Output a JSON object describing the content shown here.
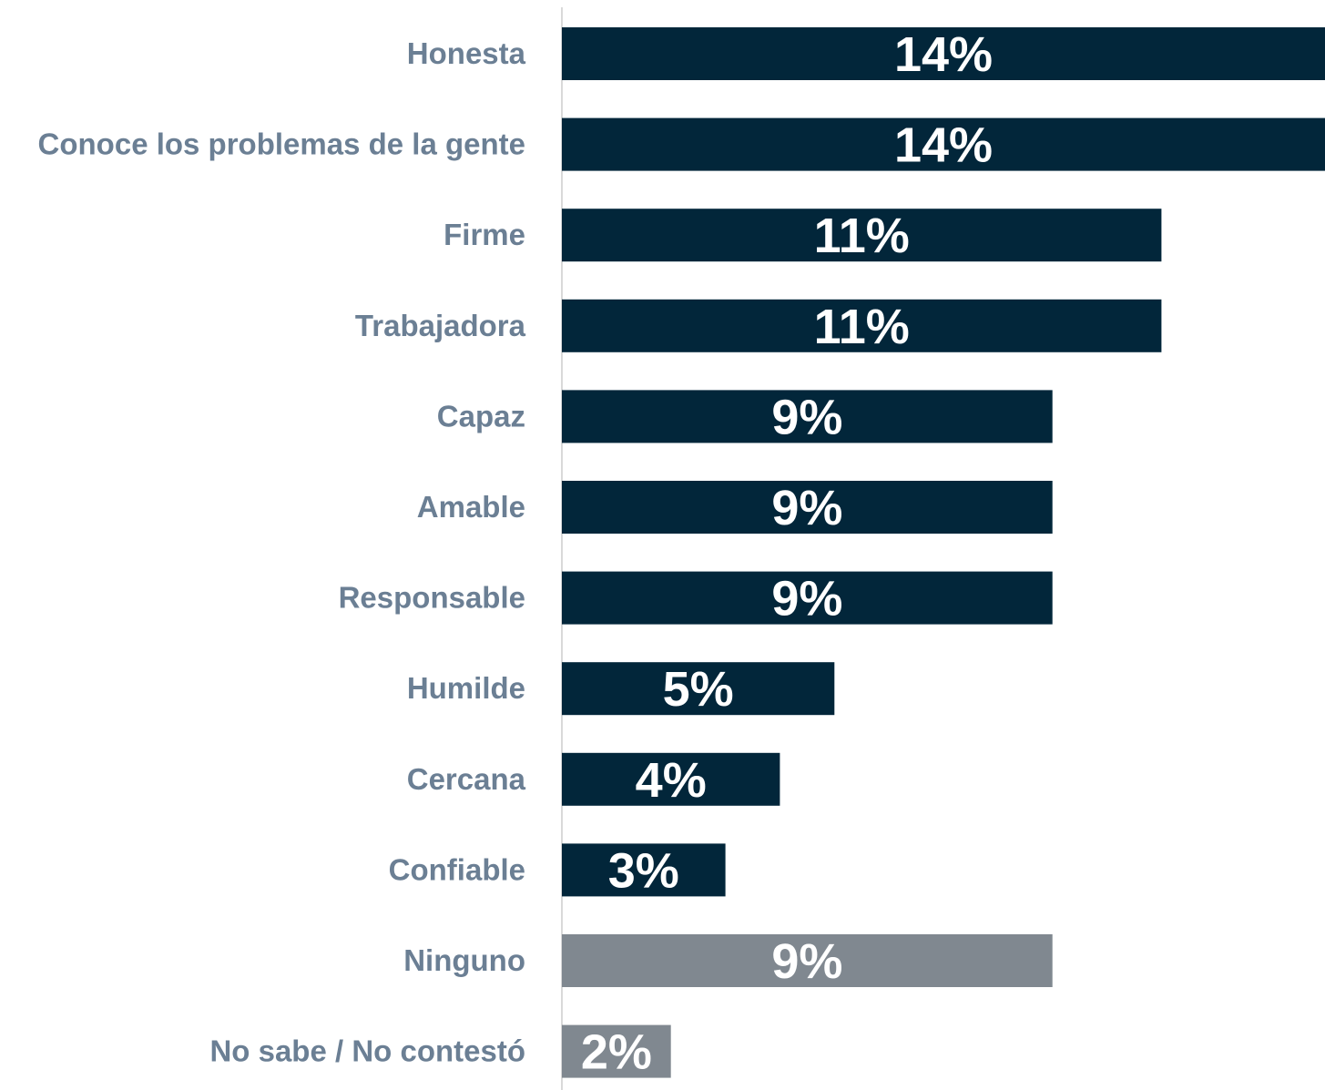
{
  "chart_data": {
    "type": "bar",
    "orientation": "horizontal",
    "categories": [
      "Honesta",
      "Conoce los problemas de la gente",
      "Firme",
      "Trabajadora",
      "Capaz",
      "Amable",
      "Responsable",
      "Humilde",
      "Cercana",
      "Confiable",
      "Ninguno",
      "No sabe / No contestó"
    ],
    "values": [
      14,
      14,
      11,
      11,
      9,
      9,
      9,
      5,
      4,
      3,
      9,
      2
    ],
    "value_labels": [
      "14%",
      "14%",
      "11%",
      "11%",
      "9%",
      "9%",
      "9%",
      "5%",
      "4%",
      "3%",
      "9%",
      "2%"
    ],
    "bar_colors": [
      "#02263a",
      "#02263a",
      "#02263a",
      "#02263a",
      "#02263a",
      "#02263a",
      "#02263a",
      "#02263a",
      "#02263a",
      "#02263a",
      "#808890",
      "#808890"
    ],
    "xlim": [
      0,
      14
    ],
    "grid": false,
    "legend": "none"
  },
  "colors": {
    "label": "#6b7f94",
    "value_text": "#ffffff",
    "axis_line": "#d9d9d9"
  }
}
